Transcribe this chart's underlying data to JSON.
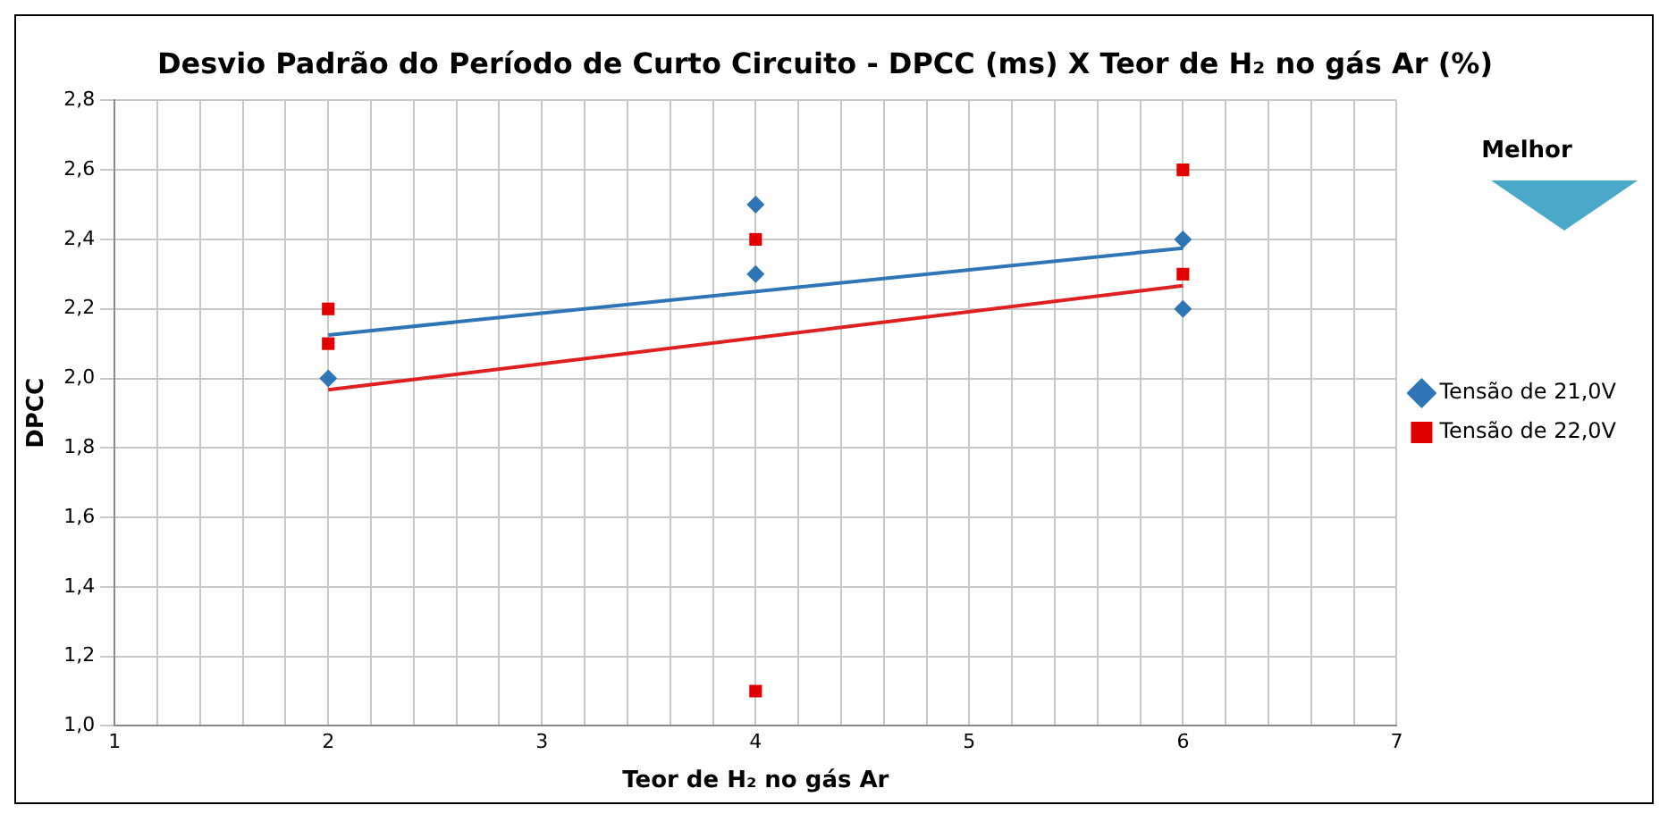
{
  "chart_data": {
    "type": "scatter",
    "title": "Desvio Padrão do Período de Curto Circuito - DPCC (ms) X Teor de H₂ no gás Ar (%)",
    "xlabel": "Teor de H₂ no gás Ar",
    "ylabel": "DPCC",
    "series": [
      {
        "name": "Tensão de 21,0V",
        "color": "#2e75b6",
        "marker": "diamond",
        "x": [
          2,
          4,
          4,
          6,
          6
        ],
        "values": [
          2.0,
          2.5,
          2.3,
          2.4,
          2.2
        ]
      },
      {
        "name": "Tensão de 22,0V",
        "color": "#e00000",
        "marker": "square",
        "x": [
          2,
          2,
          4,
          4,
          6,
          6
        ],
        "values": [
          2.2,
          2.1,
          2.4,
          1.1,
          2.6,
          2.3
        ]
      },
      {
        "type": "line",
        "color": "#2e75b6",
        "x": [
          2,
          6
        ],
        "values": [
          2.125,
          2.375
        ]
      },
      {
        "type": "line",
        "color": "#e02020",
        "x": [
          2,
          6
        ],
        "values": [
          1.967,
          2.267
        ]
      }
    ],
    "xlim": [
      1,
      7
    ],
    "xticks": [
      1,
      {
        "value": 1.2,
        "label": null
      },
      {
        "value": 1.4,
        "label": null
      },
      {
        "value": 1.6,
        "label": null
      },
      {
        "value": 1.8,
        "label": null
      },
      2,
      {
        "value": 2.2,
        "label": null
      },
      {
        "value": 2.4,
        "label": null
      },
      {
        "value": 2.6,
        "label": null
      },
      {
        "value": 2.8,
        "label": null
      },
      3,
      {
        "value": 3.2,
        "label": null
      },
      {
        "value": 3.4,
        "label": null
      },
      {
        "value": 3.6,
        "label": null
      },
      {
        "value": 3.8,
        "label": null
      },
      4,
      {
        "value": 4.2,
        "label": null
      },
      {
        "value": 4.4,
        "label": null
      },
      {
        "value": 4.6,
        "label": null
      },
      {
        "value": 4.8,
        "label": null
      },
      5,
      {
        "value": 5.2,
        "label": null
      },
      {
        "value": 5.4,
        "label": null
      },
      {
        "value": 5.6,
        "label": null
      },
      {
        "value": 5.8,
        "label": null
      },
      6,
      {
        "value": 6.2,
        "label": null
      },
      {
        "value": 6.4,
        "label": null
      },
      {
        "value": 6.6,
        "label": null
      },
      {
        "value": 6.8,
        "label": null
      },
      7
    ],
    "ylim": [
      1.0,
      2.8
    ],
    "yticks": [
      {
        "value": 1.0,
        "label": "1,0"
      },
      {
        "value": 1.2,
        "label": "1,2"
      },
      {
        "value": 1.4,
        "label": "1,4"
      },
      {
        "value": 1.6,
        "label": "1,6"
      },
      {
        "value": 1.8,
        "label": "1,8"
      },
      {
        "value": 2.0,
        "label": "2,0"
      },
      {
        "value": 2.2,
        "label": "2,2"
      },
      {
        "value": 2.4,
        "label": "2,4"
      },
      {
        "value": 2.6,
        "label": "2,6"
      },
      {
        "value": 2.8,
        "label": "2,8"
      }
    ],
    "grid": true,
    "legend": "right",
    "annotations": [
      "Melhor"
    ]
  }
}
